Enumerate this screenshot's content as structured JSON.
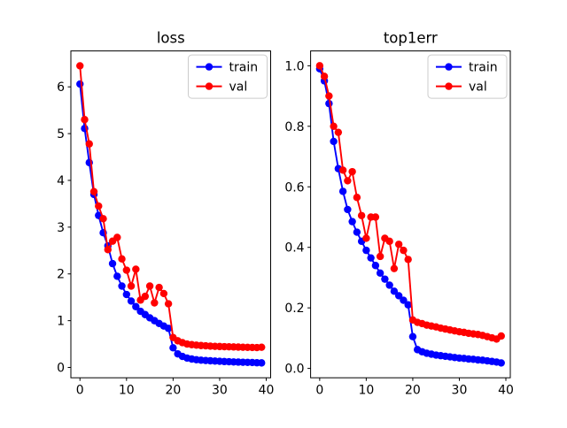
{
  "figure": {
    "background": "#ffffff",
    "titles": [
      "loss",
      "top1err"
    ]
  },
  "colors": {
    "train": "#0000ff",
    "val": "#ff0000",
    "spine": "#000000",
    "text": "#000000",
    "legend_border": "#cccccc",
    "legend_fill": "#ffffff"
  },
  "chart_data": [
    {
      "type": "line",
      "title": "loss",
      "xlabel": "",
      "ylabel": "",
      "grid": false,
      "marker": "circle",
      "legend_position": "upper right",
      "xlim": [
        -1.95,
        40.95
      ],
      "ylim": [
        -0.221,
        6.768
      ],
      "xticks": [
        0,
        10,
        20,
        30,
        40
      ],
      "xtick_labels": [
        "0",
        "10",
        "20",
        "30",
        "40"
      ],
      "yticks": [
        0,
        1,
        2,
        3,
        4,
        5,
        6
      ],
      "ytick_labels": [
        "0",
        "1",
        "2",
        "3",
        "4",
        "5",
        "6"
      ],
      "x": [
        0,
        1,
        2,
        3,
        4,
        5,
        6,
        7,
        8,
        9,
        10,
        11,
        12,
        13,
        14,
        15,
        16,
        17,
        18,
        19,
        20,
        21,
        22,
        23,
        24,
        25,
        26,
        27,
        28,
        29,
        30,
        31,
        32,
        33,
        34,
        35,
        36,
        37,
        38,
        39
      ],
      "series": [
        {
          "name": "train",
          "color": "#0000ff",
          "values": [
            6.06,
            5.11,
            4.38,
            3.7,
            3.25,
            2.88,
            2.6,
            2.22,
            1.95,
            1.74,
            1.56,
            1.42,
            1.3,
            1.2,
            1.13,
            1.06,
            1.0,
            0.94,
            0.885,
            0.835,
            0.42,
            0.29,
            0.235,
            0.2,
            0.18,
            0.165,
            0.155,
            0.148,
            0.142,
            0.136,
            0.131,
            0.126,
            0.122,
            0.118,
            0.114,
            0.111,
            0.108,
            0.105,
            0.1,
            0.097
          ]
        },
        {
          "name": "val",
          "color": "#ff0000",
          "values": [
            6.45,
            5.3,
            4.78,
            3.76,
            3.45,
            3.18,
            2.52,
            2.7,
            2.78,
            2.32,
            2.08,
            1.74,
            2.1,
            1.44,
            1.52,
            1.74,
            1.38,
            1.71,
            1.58,
            1.36,
            0.64,
            0.57,
            0.53,
            0.5,
            0.487,
            0.477,
            0.468,
            0.462,
            0.456,
            0.451,
            0.447,
            0.444,
            0.441,
            0.438,
            0.435,
            0.432,
            0.429,
            0.427,
            0.424,
            0.432
          ]
        }
      ]
    },
    {
      "type": "line",
      "title": "top1err",
      "xlabel": "",
      "ylabel": "",
      "grid": false,
      "marker": "circle",
      "legend_position": "upper right",
      "xlim": [
        -1.95,
        40.95
      ],
      "ylim": [
        -0.031,
        1.049
      ],
      "xticks": [
        0,
        10,
        20,
        30,
        40
      ],
      "xtick_labels": [
        "0",
        "10",
        "20",
        "30",
        "40"
      ],
      "yticks": [
        0.0,
        0.2,
        0.4,
        0.6,
        0.8,
        1.0
      ],
      "ytick_labels": [
        "0.0",
        "0.2",
        "0.4",
        "0.6",
        "0.8",
        "1.0"
      ],
      "x": [
        0,
        1,
        2,
        3,
        4,
        5,
        6,
        7,
        8,
        9,
        10,
        11,
        12,
        13,
        14,
        15,
        16,
        17,
        18,
        19,
        20,
        21,
        22,
        23,
        24,
        25,
        26,
        27,
        28,
        29,
        30,
        31,
        32,
        33,
        34,
        35,
        36,
        37,
        38,
        39
      ],
      "series": [
        {
          "name": "train",
          "color": "#0000ff",
          "values": [
            0.99,
            0.95,
            0.875,
            0.75,
            0.66,
            0.585,
            0.525,
            0.485,
            0.45,
            0.42,
            0.39,
            0.365,
            0.34,
            0.315,
            0.295,
            0.275,
            0.255,
            0.24,
            0.225,
            0.21,
            0.105,
            0.062,
            0.055,
            0.05,
            0.047,
            0.044,
            0.042,
            0.04,
            0.038,
            0.036,
            0.034,
            0.033,
            0.031,
            0.03,
            0.028,
            0.027,
            0.025,
            0.023,
            0.021,
            0.018
          ]
        },
        {
          "name": "val",
          "color": "#ff0000",
          "values": [
            1.0,
            0.965,
            0.9,
            0.8,
            0.78,
            0.655,
            0.62,
            0.65,
            0.565,
            0.505,
            0.43,
            0.5,
            0.5,
            0.37,
            0.43,
            0.42,
            0.33,
            0.41,
            0.39,
            0.36,
            0.16,
            0.152,
            0.148,
            0.143,
            0.14,
            0.137,
            0.133,
            0.13,
            0.127,
            0.124,
            0.121,
            0.119,
            0.116,
            0.114,
            0.112,
            0.109,
            0.105,
            0.101,
            0.097,
            0.107
          ]
        }
      ]
    }
  ]
}
